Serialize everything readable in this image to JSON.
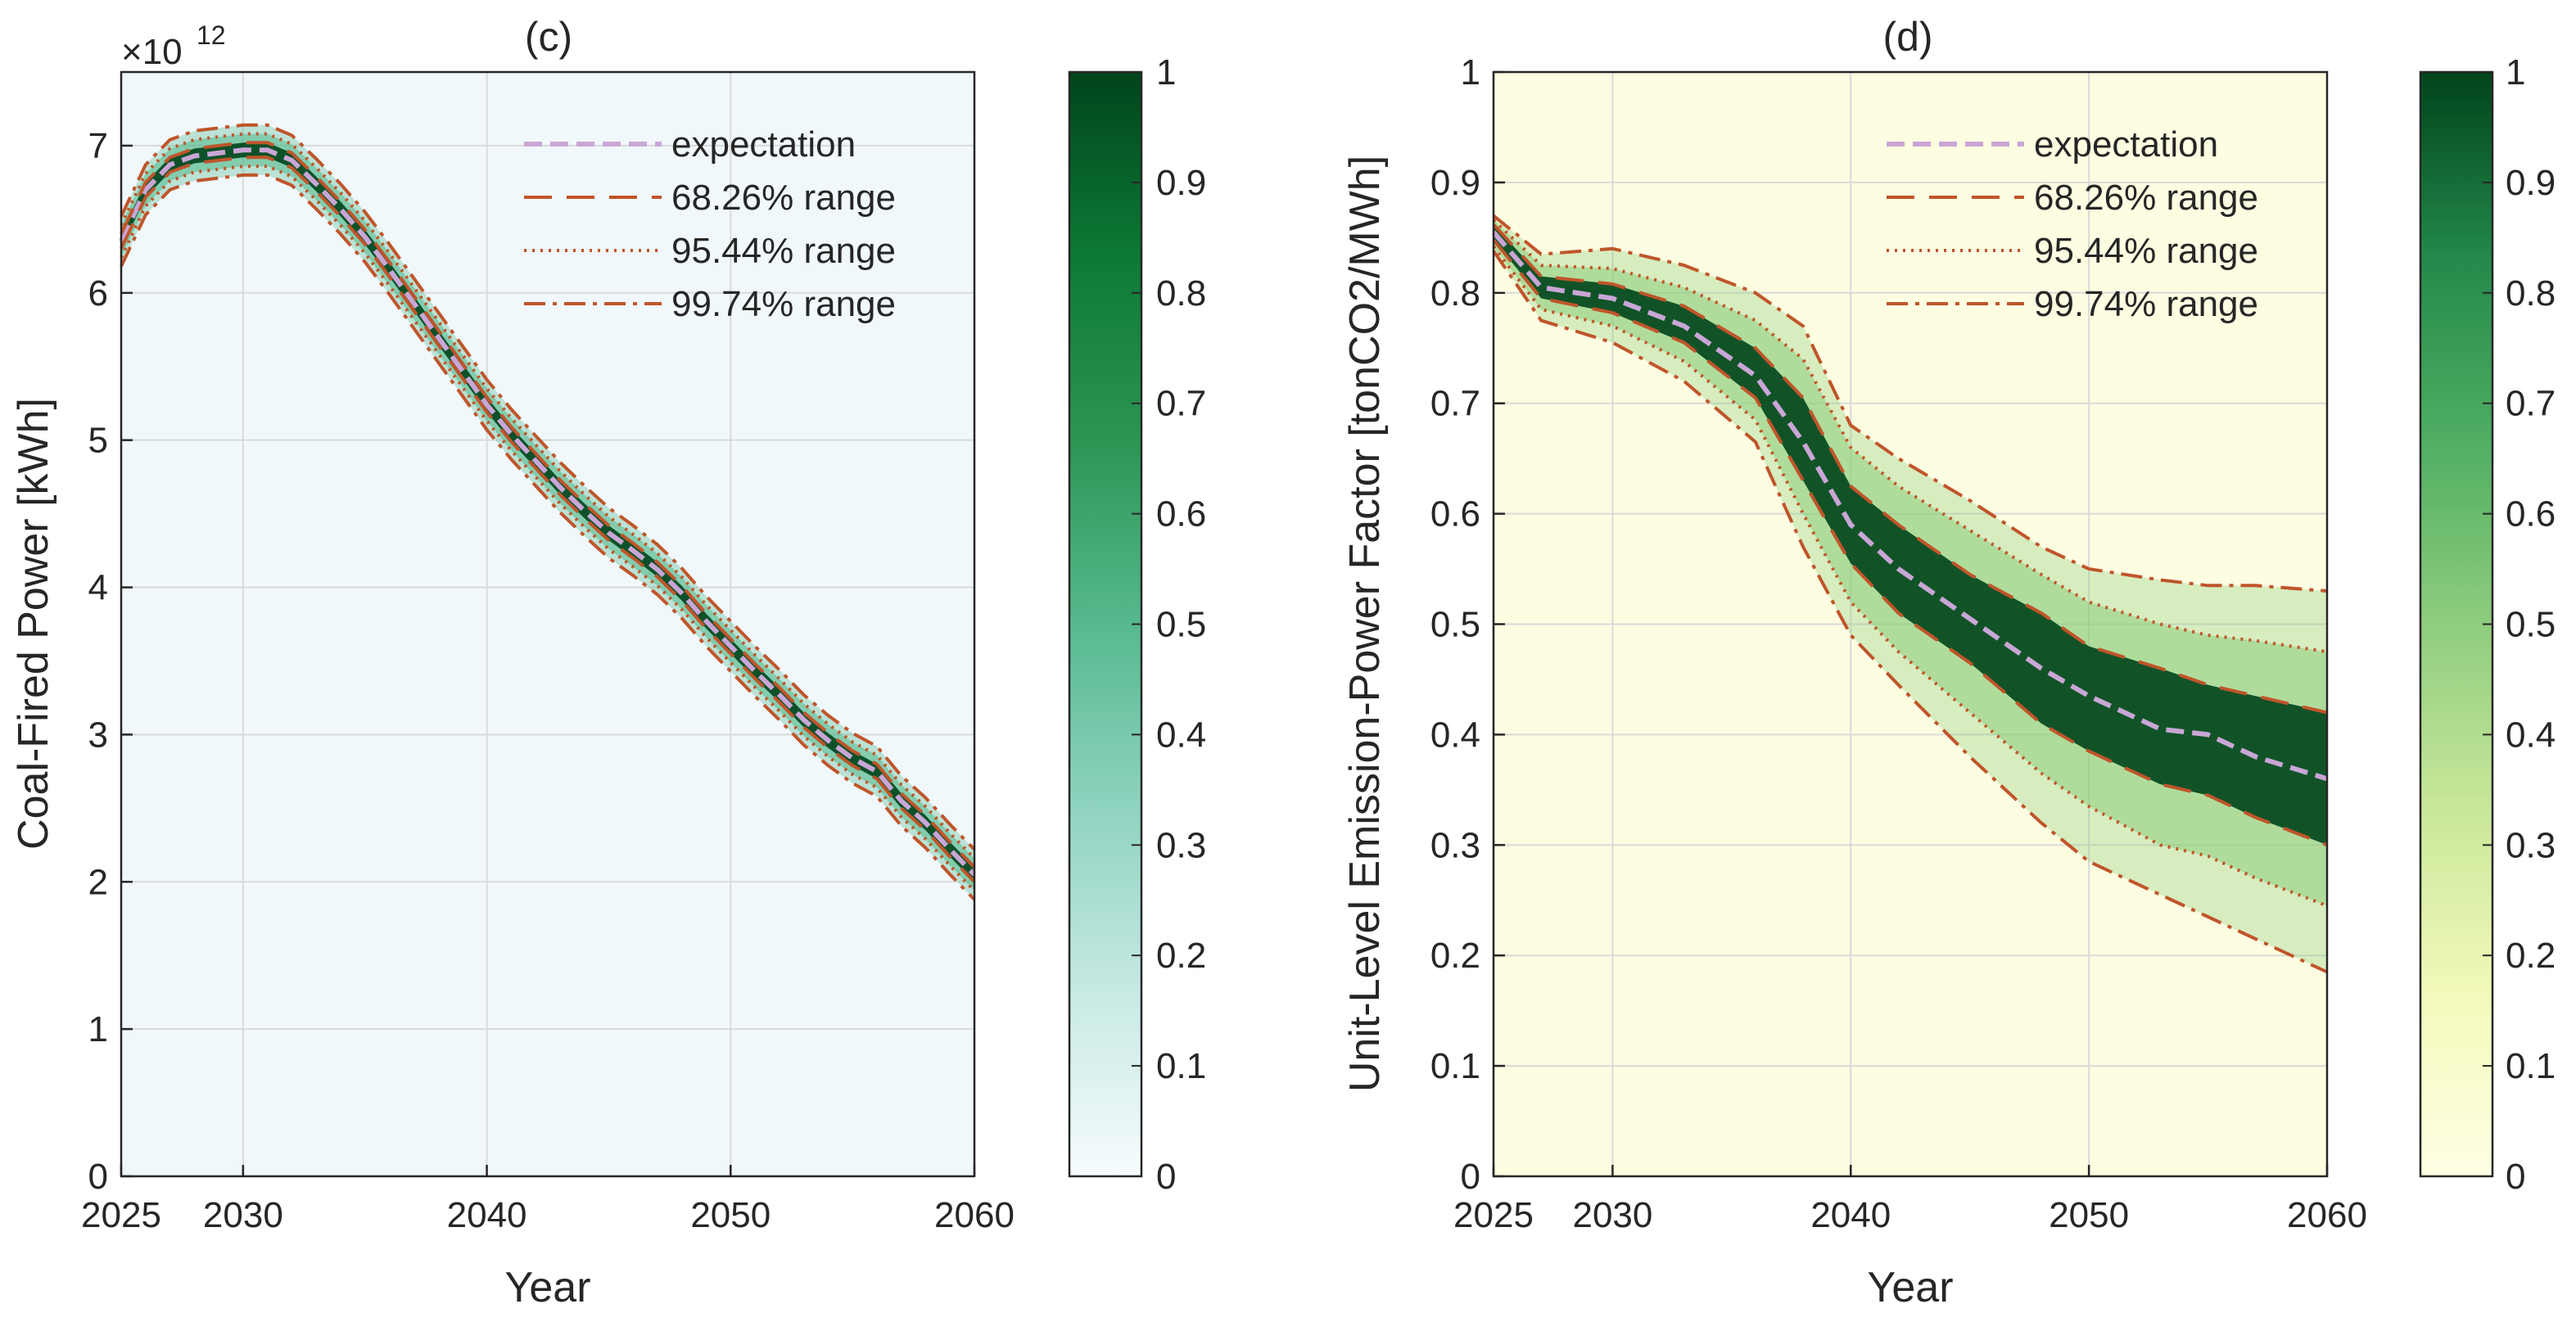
{
  "chart_data": [
    {
      "type": "line",
      "title": "(c)",
      "xlabel": "Year",
      "ylabel": "Coal-Fired Power [kWh]",
      "y_exponent_label": "×10",
      "y_exponent_power": "12",
      "xlim": [
        2025,
        2060
      ],
      "ylim": [
        0,
        7.5
      ],
      "xticks": [
        2025,
        2030,
        2040,
        2050,
        2060
      ],
      "xtick_labels": [
        "2025",
        "2030",
        "2040",
        "2050",
        "2060"
      ],
      "yticks": [
        0,
        1,
        2,
        3,
        4,
        5,
        6,
        7
      ],
      "ytick_labels": [
        "0",
        "1",
        "2",
        "3",
        "4",
        "5",
        "6",
        "7"
      ],
      "background": "#f1f8fc",
      "colormap": [
        "#f7fcfd",
        "#c7e9e4",
        "#8fd3c0",
        "#56b98e",
        "#2c9553",
        "#0c7a35",
        "#00441b"
      ],
      "colorbar": {
        "range": [
          0,
          1
        ],
        "ticks": [
          "0",
          "0.1",
          "0.2",
          "0.3",
          "0.4",
          "0.5",
          "0.6",
          "0.7",
          "0.8",
          "0.9",
          "1"
        ]
      },
      "legend": [
        {
          "label": "expectation",
          "style": "dashed",
          "color": "#c9a6d6"
        },
        {
          "label": "68.26% range",
          "style": "longdash",
          "color": "#c0552a"
        },
        {
          "label": "95.44% range",
          "style": "dotted",
          "color": "#c0552a"
        },
        {
          "label": "99.74% range",
          "style": "dashdot",
          "color": "#c0552a"
        }
      ],
      "x": [
        2025,
        2026,
        2027,
        2028,
        2029,
        2030,
        2031,
        2032,
        2033,
        2034,
        2035,
        2036,
        2037,
        2038,
        2039,
        2040,
        2041,
        2042,
        2043,
        2044,
        2045,
        2046,
        2047,
        2048,
        2049,
        2050,
        2051,
        2052,
        2053,
        2054,
        2055,
        2056,
        2057,
        2058,
        2059,
        2060
      ],
      "series": [
        {
          "name": "expectation",
          "values": [
            6.35,
            6.7,
            6.87,
            6.93,
            6.95,
            6.97,
            6.97,
            6.9,
            6.74,
            6.57,
            6.38,
            6.16,
            5.93,
            5.7,
            5.47,
            5.24,
            5.04,
            4.86,
            4.68,
            4.52,
            4.37,
            4.25,
            4.12,
            3.96,
            3.77,
            3.6,
            3.43,
            3.27,
            3.1,
            2.96,
            2.84,
            2.75,
            2.55,
            2.4,
            2.22,
            2.05
          ]
        },
        {
          "name": "68.26% upper",
          "values": [
            6.4,
            6.75,
            6.92,
            6.98,
            7.0,
            7.02,
            7.02,
            6.95,
            6.79,
            6.62,
            6.43,
            6.21,
            5.98,
            5.75,
            5.52,
            5.29,
            5.09,
            4.91,
            4.73,
            4.57,
            4.42,
            4.3,
            4.17,
            4.01,
            3.82,
            3.65,
            3.48,
            3.32,
            3.15,
            3.01,
            2.89,
            2.8,
            2.6,
            2.45,
            2.27,
            2.1
          ]
        },
        {
          "name": "68.26% lower",
          "values": [
            6.3,
            6.65,
            6.82,
            6.88,
            6.9,
            6.92,
            6.92,
            6.85,
            6.69,
            6.52,
            6.33,
            6.11,
            5.88,
            5.65,
            5.42,
            5.19,
            4.99,
            4.81,
            4.63,
            4.47,
            4.32,
            4.2,
            4.07,
            3.91,
            3.72,
            3.55,
            3.38,
            3.22,
            3.05,
            2.91,
            2.79,
            2.7,
            2.5,
            2.35,
            2.17,
            2.0
          ]
        },
        {
          "name": "95.44% upper",
          "values": [
            6.46,
            6.81,
            6.98,
            7.04,
            7.06,
            7.08,
            7.08,
            7.01,
            6.85,
            6.68,
            6.49,
            6.27,
            6.04,
            5.81,
            5.58,
            5.35,
            5.15,
            4.97,
            4.79,
            4.63,
            4.48,
            4.36,
            4.23,
            4.07,
            3.88,
            3.71,
            3.54,
            3.38,
            3.21,
            3.07,
            2.95,
            2.86,
            2.66,
            2.51,
            2.33,
            2.16
          ]
        },
        {
          "name": "95.44% lower",
          "values": [
            6.24,
            6.59,
            6.76,
            6.82,
            6.84,
            6.86,
            6.86,
            6.79,
            6.63,
            6.46,
            6.27,
            6.05,
            5.82,
            5.59,
            5.36,
            5.13,
            4.93,
            4.75,
            4.57,
            4.41,
            4.26,
            4.14,
            4.01,
            3.85,
            3.66,
            3.49,
            3.32,
            3.16,
            2.99,
            2.85,
            2.73,
            2.64,
            2.44,
            2.29,
            2.11,
            1.94
          ]
        },
        {
          "name": "99.74% upper",
          "values": [
            6.52,
            6.87,
            7.04,
            7.1,
            7.12,
            7.14,
            7.14,
            7.07,
            6.91,
            6.74,
            6.55,
            6.33,
            6.1,
            5.87,
            5.64,
            5.41,
            5.21,
            5.03,
            4.85,
            4.69,
            4.54,
            4.42,
            4.29,
            4.13,
            3.94,
            3.77,
            3.6,
            3.44,
            3.27,
            3.13,
            3.01,
            2.92,
            2.72,
            2.57,
            2.39,
            2.22
          ]
        },
        {
          "name": "99.74% lower",
          "values": [
            6.18,
            6.53,
            6.7,
            6.76,
            6.78,
            6.8,
            6.8,
            6.73,
            6.57,
            6.4,
            6.21,
            5.99,
            5.76,
            5.53,
            5.3,
            5.07,
            4.87,
            4.69,
            4.51,
            4.35,
            4.2,
            4.08,
            3.95,
            3.79,
            3.6,
            3.43,
            3.26,
            3.1,
            2.93,
            2.79,
            2.67,
            2.58,
            2.38,
            2.23,
            2.05,
            1.88
          ]
        }
      ]
    },
    {
      "type": "line",
      "title": "(d)",
      "xlabel": "Year",
      "ylabel": "Unit-Level Emission-Power Factor [tonCO2/MWh]",
      "xlim": [
        2025,
        2060
      ],
      "ylim": [
        0,
        1
      ],
      "xticks": [
        2025,
        2030,
        2040,
        2050,
        2060
      ],
      "xtick_labels": [
        "2025",
        "2030",
        "2040",
        "2050",
        "2060"
      ],
      "yticks": [
        0,
        0.1,
        0.2,
        0.3,
        0.4,
        0.5,
        0.6,
        0.7,
        0.8,
        0.9,
        1
      ],
      "ytick_labels": [
        "0",
        "0.1",
        "0.2",
        "0.3",
        "0.4",
        "0.5",
        "0.6",
        "0.7",
        "0.8",
        "0.9",
        "1"
      ],
      "background": "#fdfde2",
      "colormap": [
        "#ffffe5",
        "#f2f9b9",
        "#c9e79a",
        "#8fcd7e",
        "#4fae62",
        "#23884a",
        "#00441b"
      ],
      "colorbar": {
        "range": [
          0,
          1
        ],
        "ticks": [
          "0",
          "0.1",
          "0.2",
          "0.3",
          "0.4",
          "0.5",
          "0.6",
          "0.7",
          "0.8",
          "0.9",
          "1"
        ]
      },
      "legend": [
        {
          "label": "expectation",
          "style": "dashed",
          "color": "#c9a6d6"
        },
        {
          "label": "68.26% range",
          "style": "longdash",
          "color": "#c0552a"
        },
        {
          "label": "95.44% range",
          "style": "dotted",
          "color": "#c0552a"
        },
        {
          "label": "99.74% range",
          "style": "dashdot",
          "color": "#c0552a"
        }
      ],
      "x": [
        2025,
        2027,
        2030,
        2033,
        2036,
        2038,
        2040,
        2042,
        2045,
        2048,
        2050,
        2053,
        2055,
        2057,
        2060
      ],
      "series": [
        {
          "name": "expectation",
          "values": [
            0.855,
            0.805,
            0.795,
            0.77,
            0.725,
            0.665,
            0.59,
            0.55,
            0.505,
            0.46,
            0.435,
            0.405,
            0.4,
            0.38,
            0.36
          ]
        },
        {
          "name": "68.26% upper",
          "values": [
            0.862,
            0.815,
            0.808,
            0.788,
            0.75,
            0.705,
            0.625,
            0.59,
            0.545,
            0.51,
            0.48,
            0.46,
            0.445,
            0.435,
            0.42
          ]
        },
        {
          "name": "68.26% lower",
          "values": [
            0.848,
            0.795,
            0.782,
            0.755,
            0.705,
            0.63,
            0.555,
            0.51,
            0.465,
            0.41,
            0.385,
            0.355,
            0.345,
            0.325,
            0.3
          ]
        },
        {
          "name": "95.44% upper",
          "values": [
            0.866,
            0.825,
            0.822,
            0.805,
            0.775,
            0.74,
            0.66,
            0.625,
            0.585,
            0.545,
            0.52,
            0.5,
            0.49,
            0.485,
            0.475
          ]
        },
        {
          "name": "95.44% lower",
          "values": [
            0.842,
            0.785,
            0.77,
            0.738,
            0.685,
            0.6,
            0.52,
            0.475,
            0.42,
            0.365,
            0.335,
            0.3,
            0.29,
            0.27,
            0.245
          ]
        },
        {
          "name": "99.74% upper",
          "values": [
            0.87,
            0.835,
            0.84,
            0.825,
            0.8,
            0.77,
            0.68,
            0.65,
            0.612,
            0.57,
            0.55,
            0.54,
            0.535,
            0.535,
            0.53
          ]
        },
        {
          "name": "99.74% lower",
          "values": [
            0.838,
            0.775,
            0.755,
            0.72,
            0.665,
            0.57,
            0.49,
            0.445,
            0.38,
            0.32,
            0.285,
            0.255,
            0.235,
            0.215,
            0.185
          ]
        }
      ]
    }
  ]
}
